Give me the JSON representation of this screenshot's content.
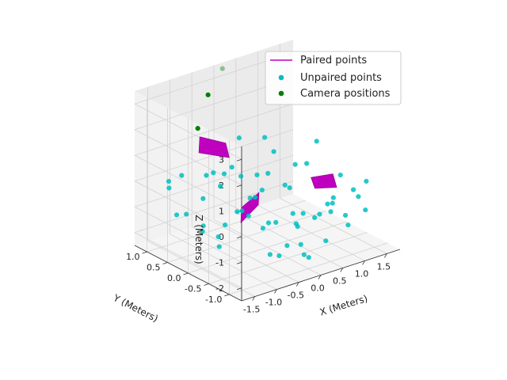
{
  "chart_data": {
    "type": "scatter",
    "projection": "3d",
    "xlabel": "X (Meters)",
    "ylabel": "Y (Meters)",
    "zlabel": "Z (Meters)",
    "xlim": [
      -1.8,
      1.8
    ],
    "ylim": [
      -1.3,
      1.3
    ],
    "zlim": [
      -2.5,
      3.5
    ],
    "xticks": [
      "-1.5",
      "-1.0",
      "-0.5",
      "0.0",
      "0.5",
      "1.0",
      "1.5"
    ],
    "yticks": [
      "1.0",
      "0.5",
      "0.0",
      "-0.5",
      "-1.0"
    ],
    "zticks": [
      "3",
      "2",
      "1",
      "0",
      "-1",
      "-2"
    ],
    "grid": true,
    "legend": {
      "position": "top-right",
      "entries": [
        {
          "label": "Paired points",
          "color": "#bf00bf",
          "marker": "line"
        },
        {
          "label": "Unpaired points",
          "color": "#00bfbf",
          "marker": "dot"
        },
        {
          "label": "Camera positions",
          "color": "#008000",
          "marker": "dot"
        }
      ]
    },
    "paired_surfaces": [
      [
        [
          -0.9,
          0.7,
          1.1
        ],
        [
          -0.4,
          0.5,
          0.8
        ],
        [
          -0.2,
          0.8,
          1.0
        ],
        [
          -0.6,
          1.0,
          1.3
        ]
      ],
      [
        [
          -0.6,
          0.0,
          -1.2
        ],
        [
          -0.3,
          -0.1,
          -0.6
        ],
        [
          -0.1,
          0.1,
          -0.4
        ],
        [
          -0.4,
          0.2,
          -0.9
        ]
      ],
      [
        [
          0.8,
          -0.3,
          -0.4
        ],
        [
          1.2,
          -0.4,
          -0.5
        ],
        [
          1.3,
          -0.2,
          -0.2
        ],
        [
          0.9,
          -0.1,
          -0.2
        ]
      ]
    ],
    "unpaired_points": [
      [
        -1.4,
        0.9,
        0.1
      ],
      [
        -1.3,
        1.0,
        -0.3
      ],
      [
        -1.2,
        0.8,
        0.3
      ],
      [
        -1.5,
        0.6,
        -0.9
      ],
      [
        -1.1,
        0.4,
        -1.6
      ],
      [
        -1.0,
        0.9,
        -1.4
      ],
      [
        -0.9,
        0.6,
        -0.6
      ],
      [
        -0.8,
        0.7,
        -1.8
      ],
      [
        -0.7,
        0.3,
        0.5
      ],
      [
        -0.6,
        0.5,
        -0.2
      ],
      [
        -0.5,
        0.2,
        -1.0
      ],
      [
        -0.4,
        0.6,
        -1.9
      ],
      [
        -0.3,
        0.1,
        -0.5
      ],
      [
        -0.2,
        0.4,
        -1.3
      ],
      [
        -0.1,
        0.0,
        -1.7
      ],
      [
        0.0,
        0.3,
        -0.8
      ],
      [
        0.1,
        -0.1,
        -1.5
      ],
      [
        0.2,
        0.2,
        0.1
      ],
      [
        0.3,
        -0.3,
        -1.1
      ],
      [
        0.4,
        0.0,
        -0.3
      ],
      [
        0.5,
        -0.2,
        -1.8
      ],
      [
        0.6,
        0.1,
        -0.6
      ],
      [
        0.7,
        -0.4,
        -1.4
      ],
      [
        0.8,
        -0.1,
        0.4
      ],
      [
        0.9,
        -0.5,
        -0.9
      ],
      [
        1.0,
        -0.2,
        -1.6
      ],
      [
        1.1,
        -0.6,
        0.2
      ],
      [
        1.2,
        -0.3,
        -1.2
      ],
      [
        1.3,
        -0.7,
        -0.4
      ],
      [
        1.4,
        -0.4,
        -1.7
      ],
      [
        1.5,
        -0.8,
        -0.1
      ],
      [
        1.6,
        -0.5,
        -1.0
      ],
      [
        -0.5,
        -0.6,
        -2.0
      ],
      [
        -0.3,
        -0.8,
        -1.6
      ],
      [
        -0.1,
        -1.0,
        -1.9
      ],
      [
        0.1,
        -0.9,
        -2.2
      ],
      [
        0.3,
        -1.1,
        -1.5
      ],
      [
        0.0,
        -0.7,
        -1.0
      ],
      [
        -0.2,
        -0.5,
        -2.3
      ],
      [
        0.2,
        -0.6,
        -2.0
      ],
      [
        -1.2,
        0.2,
        0.8
      ],
      [
        -0.9,
        -0.1,
        1.2
      ],
      [
        -0.6,
        0.0,
        0.6
      ],
      [
        0.5,
        0.6,
        1.0
      ],
      [
        0.8,
        0.7,
        0.2
      ],
      [
        1.1,
        0.5,
        -0.3
      ],
      [
        1.4,
        0.3,
        0.6
      ],
      [
        0.2,
        0.9,
        0.9
      ],
      [
        -0.4,
        -0.3,
        0.2
      ],
      [
        0.6,
        -0.9,
        -0.7
      ],
      [
        0.9,
        -1.0,
        -1.3
      ],
      [
        1.2,
        -1.1,
        -0.8
      ],
      [
        -0.8,
        -0.4,
        -0.5
      ],
      [
        -1.3,
        -0.2,
        -1.2
      ],
      [
        -1.0,
        0.1,
        -2.0
      ],
      [
        0.4,
        0.4,
        -2.1
      ],
      [
        1.0,
        0.2,
        -1.9
      ],
      [
        1.5,
        0.0,
        -1.4
      ],
      [
        0.7,
        1.0,
        -0.9
      ],
      [
        -0.2,
        1.1,
        -0.4
      ]
    ],
    "camera_positions": [
      [
        -1.3,
        0.3,
        2.6
      ],
      [
        -0.6,
        0.8,
        3.1
      ],
      [
        0.1,
        1.2,
        3.4
      ]
    ]
  }
}
